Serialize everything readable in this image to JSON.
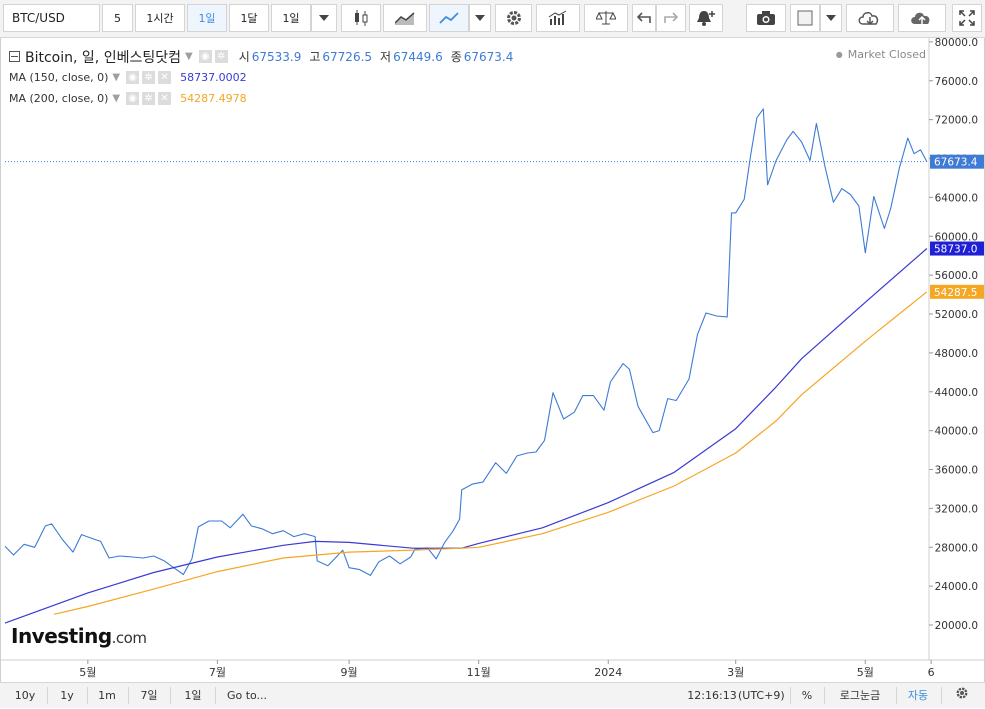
{
  "toolbar": {
    "symbol": "BTC/USD",
    "interval_value": "5",
    "btn_1h": "1시간",
    "btn_1d": "1일",
    "btn_1m": "1달",
    "btn_day_dropdown": "1일"
  },
  "legend": {
    "title": "Bitcoin, 일, 인베스팅닷컴",
    "open_label": "시",
    "open_value": "67533.9",
    "high_label": "고",
    "high_value": "67726.5",
    "low_label": "저",
    "low_value": "67449.6",
    "close_label": "종",
    "close_value": "67673.4",
    "ma150_label": "MA (150, close, 0)",
    "ma150_value": "58737.0002",
    "ma200_label": "MA (200, close, 0)",
    "ma200_value": "54287.4978"
  },
  "market_status": "Market Closed",
  "logo": {
    "brand": "Investing",
    "suffix": ".com"
  },
  "price_labels": {
    "last": "67673.4",
    "ma150": "58737.0",
    "ma200": "54287.5"
  },
  "bottom": {
    "ranges": [
      "10y",
      "1y",
      "1m",
      "7일",
      "1일"
    ],
    "goto": "Go to...",
    "time": "12:16:13",
    "tz": "(UTC+9)",
    "percent": "%",
    "log": "로그눈금",
    "auto": "자동"
  },
  "colors": {
    "price_line": "#3d7bd4",
    "ma150": "#3a3ad6",
    "ma200": "#f5a623",
    "accent": "#3d8de0"
  },
  "chart_data": {
    "type": "line",
    "title": "Bitcoin, 일, 인베스팅닷컴",
    "y_ticks": [
      "80000.0",
      "76000.0",
      "72000.0",
      "68000.0",
      "64000.0",
      "60000.0",
      "56000.0",
      "52000.0",
      "48000.0",
      "44000.0",
      "40000.0",
      "36000.0",
      "32000.0",
      "28000.0",
      "24000.0",
      "20000.0"
    ],
    "ylim": [
      16400,
      80400
    ],
    "x_ticks": [
      "5월",
      "7월",
      "9월",
      "11월",
      "2024",
      "3월",
      "5월",
      "6"
    ],
    "x_tick_dates": [
      "2023-05-01",
      "2023-07-01",
      "2023-09-01",
      "2023-11-01",
      "2024-01-01",
      "2024-03-01",
      "2024-05-01",
      "2024-06-01"
    ],
    "xlim": [
      "2023-03-23",
      "2024-05-31"
    ],
    "series": [
      {
        "name": "Bitcoin",
        "color": "#3d7bd4",
        "points": [
          [
            "2023-03-23",
            28100
          ],
          [
            "2023-03-27",
            27200
          ],
          [
            "2023-04-01",
            28300
          ],
          [
            "2023-04-06",
            28000
          ],
          [
            "2023-04-11",
            30200
          ],
          [
            "2023-04-14",
            30400
          ],
          [
            "2023-04-19",
            28800
          ],
          [
            "2023-04-24",
            27500
          ],
          [
            "2023-04-28",
            29300
          ],
          [
            "2023-05-03",
            28900
          ],
          [
            "2023-05-07",
            28600
          ],
          [
            "2023-05-11",
            26900
          ],
          [
            "2023-05-16",
            27100
          ],
          [
            "2023-05-22",
            27000
          ],
          [
            "2023-05-27",
            26900
          ],
          [
            "2023-06-01",
            27100
          ],
          [
            "2023-06-06",
            26600
          ],
          [
            "2023-06-11",
            25800
          ],
          [
            "2023-06-15",
            25200
          ],
          [
            "2023-06-19",
            26800
          ],
          [
            "2023-06-22",
            30100
          ],
          [
            "2023-06-27",
            30700
          ],
          [
            "2023-07-03",
            30700
          ],
          [
            "2023-07-07",
            30000
          ],
          [
            "2023-07-13",
            31400
          ],
          [
            "2023-07-17",
            30200
          ],
          [
            "2023-07-22",
            29900
          ],
          [
            "2023-07-27",
            29400
          ],
          [
            "2023-08-01",
            29700
          ],
          [
            "2023-08-06",
            29100
          ],
          [
            "2023-08-11",
            29400
          ],
          [
            "2023-08-16",
            29100
          ],
          [
            "2023-08-17",
            26600
          ],
          [
            "2023-08-22",
            26100
          ],
          [
            "2023-08-29",
            27700
          ],
          [
            "2023-09-01",
            25900
          ],
          [
            "2023-09-06",
            25700
          ],
          [
            "2023-09-11",
            25100
          ],
          [
            "2023-09-15",
            26500
          ],
          [
            "2023-09-20",
            27100
          ],
          [
            "2023-09-25",
            26300
          ],
          [
            "2023-09-30",
            27000
          ],
          [
            "2023-10-02",
            27800
          ],
          [
            "2023-10-08",
            27900
          ],
          [
            "2023-10-12",
            26800
          ],
          [
            "2023-10-16",
            28500
          ],
          [
            "2023-10-20",
            29700
          ],
          [
            "2023-10-23",
            30900
          ],
          [
            "2023-10-24",
            33900
          ],
          [
            "2023-10-29",
            34500
          ],
          [
            "2023-11-03",
            34700
          ],
          [
            "2023-11-09",
            36700
          ],
          [
            "2023-11-14",
            35600
          ],
          [
            "2023-11-19",
            37400
          ],
          [
            "2023-11-24",
            37700
          ],
          [
            "2023-11-28",
            37800
          ],
          [
            "2023-12-02",
            39000
          ],
          [
            "2023-12-06",
            43900
          ],
          [
            "2023-12-11",
            41200
          ],
          [
            "2023-12-16",
            41900
          ],
          [
            "2023-12-20",
            43600
          ],
          [
            "2023-12-25",
            43600
          ],
          [
            "2023-12-30",
            42100
          ],
          [
            "2024-01-02",
            45000
          ],
          [
            "2024-01-08",
            46900
          ],
          [
            "2024-01-11",
            46300
          ],
          [
            "2024-01-15",
            42500
          ],
          [
            "2024-01-22",
            39800
          ],
          [
            "2024-01-25",
            40000
          ],
          [
            "2024-01-29",
            43300
          ],
          [
            "2024-02-02",
            43100
          ],
          [
            "2024-02-08",
            45300
          ],
          [
            "2024-02-12",
            49900
          ],
          [
            "2024-02-16",
            52100
          ],
          [
            "2024-02-21",
            51800
          ],
          [
            "2024-02-26",
            51700
          ],
          [
            "2024-02-28",
            62400
          ],
          [
            "2024-03-01",
            62400
          ],
          [
            "2024-03-05",
            63800
          ],
          [
            "2024-03-08",
            68300
          ],
          [
            "2024-03-11",
            72200
          ],
          [
            "2024-03-14",
            73100
          ],
          [
            "2024-03-16",
            65300
          ],
          [
            "2024-03-20",
            67800
          ],
          [
            "2024-03-25",
            69900
          ],
          [
            "2024-03-28",
            70800
          ],
          [
            "2024-04-01",
            69700
          ],
          [
            "2024-04-05",
            67800
          ],
          [
            "2024-04-08",
            71600
          ],
          [
            "2024-04-12",
            67200
          ],
          [
            "2024-04-16",
            63500
          ],
          [
            "2024-04-20",
            64900
          ],
          [
            "2024-04-24",
            64300
          ],
          [
            "2024-04-28",
            63100
          ],
          [
            "2024-05-01",
            58300
          ],
          [
            "2024-05-05",
            64100
          ],
          [
            "2024-05-10",
            60800
          ],
          [
            "2024-05-13",
            62900
          ],
          [
            "2024-05-17",
            67000
          ],
          [
            "2024-05-21",
            70100
          ],
          [
            "2024-05-24",
            68500
          ],
          [
            "2024-05-27",
            68900
          ],
          [
            "2024-05-30",
            67673.4
          ]
        ]
      },
      {
        "name": "MA (150, close, 0)",
        "color": "#3a3ad6",
        "points": [
          [
            "2023-03-23",
            20200
          ],
          [
            "2023-05-01",
            23300
          ],
          [
            "2023-06-01",
            25400
          ],
          [
            "2023-07-01",
            27000
          ],
          [
            "2023-08-01",
            28200
          ],
          [
            "2023-08-16",
            28600
          ],
          [
            "2023-09-01",
            28500
          ],
          [
            "2023-10-01",
            27900
          ],
          [
            "2023-10-24",
            27900
          ],
          [
            "2023-11-01",
            28400
          ],
          [
            "2023-12-01",
            30000
          ],
          [
            "2024-01-01",
            32600
          ],
          [
            "2024-02-01",
            35700
          ],
          [
            "2024-03-01",
            40200
          ],
          [
            "2024-03-20",
            44500
          ],
          [
            "2024-04-01",
            47400
          ],
          [
            "2024-05-01",
            53200
          ],
          [
            "2024-05-30",
            58737.0
          ]
        ]
      },
      {
        "name": "MA (200, close, 0)",
        "color": "#f5a623",
        "points": [
          [
            "2023-04-15",
            21100
          ],
          [
            "2023-05-01",
            21900
          ],
          [
            "2023-06-01",
            23700
          ],
          [
            "2023-07-01",
            25500
          ],
          [
            "2023-08-01",
            26900
          ],
          [
            "2023-09-01",
            27500
          ],
          [
            "2023-10-01",
            27700
          ],
          [
            "2023-10-24",
            27900
          ],
          [
            "2023-11-01",
            28000
          ],
          [
            "2023-12-01",
            29400
          ],
          [
            "2024-01-01",
            31600
          ],
          [
            "2024-02-01",
            34300
          ],
          [
            "2024-03-01",
            37700
          ],
          [
            "2024-03-20",
            41000
          ],
          [
            "2024-04-01",
            43700
          ],
          [
            "2024-05-01",
            49200
          ],
          [
            "2024-05-30",
            54287.5
          ]
        ]
      }
    ]
  }
}
